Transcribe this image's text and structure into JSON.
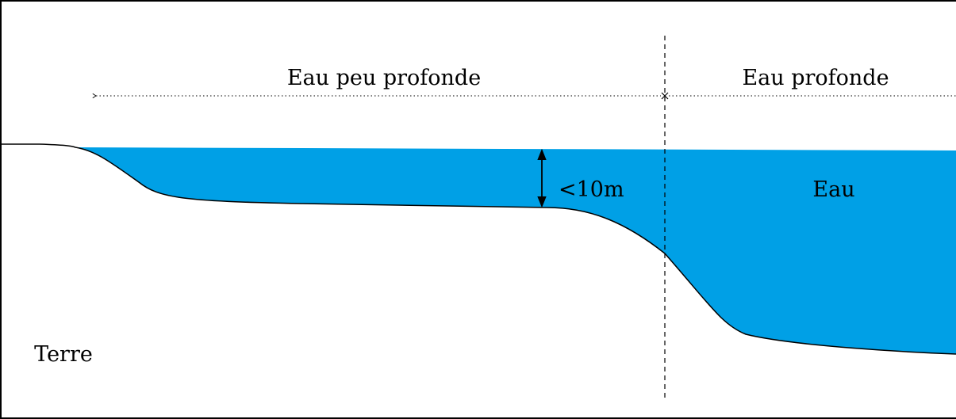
{
  "labels": {
    "shallow_water": "Eau peu profonde",
    "deep_water": "Eau profonde",
    "depth": "<10m",
    "water": "Eau",
    "land": "Terre"
  },
  "colors": {
    "water": "#00a0e6",
    "outline": "#000000",
    "background": "#ffffff"
  }
}
